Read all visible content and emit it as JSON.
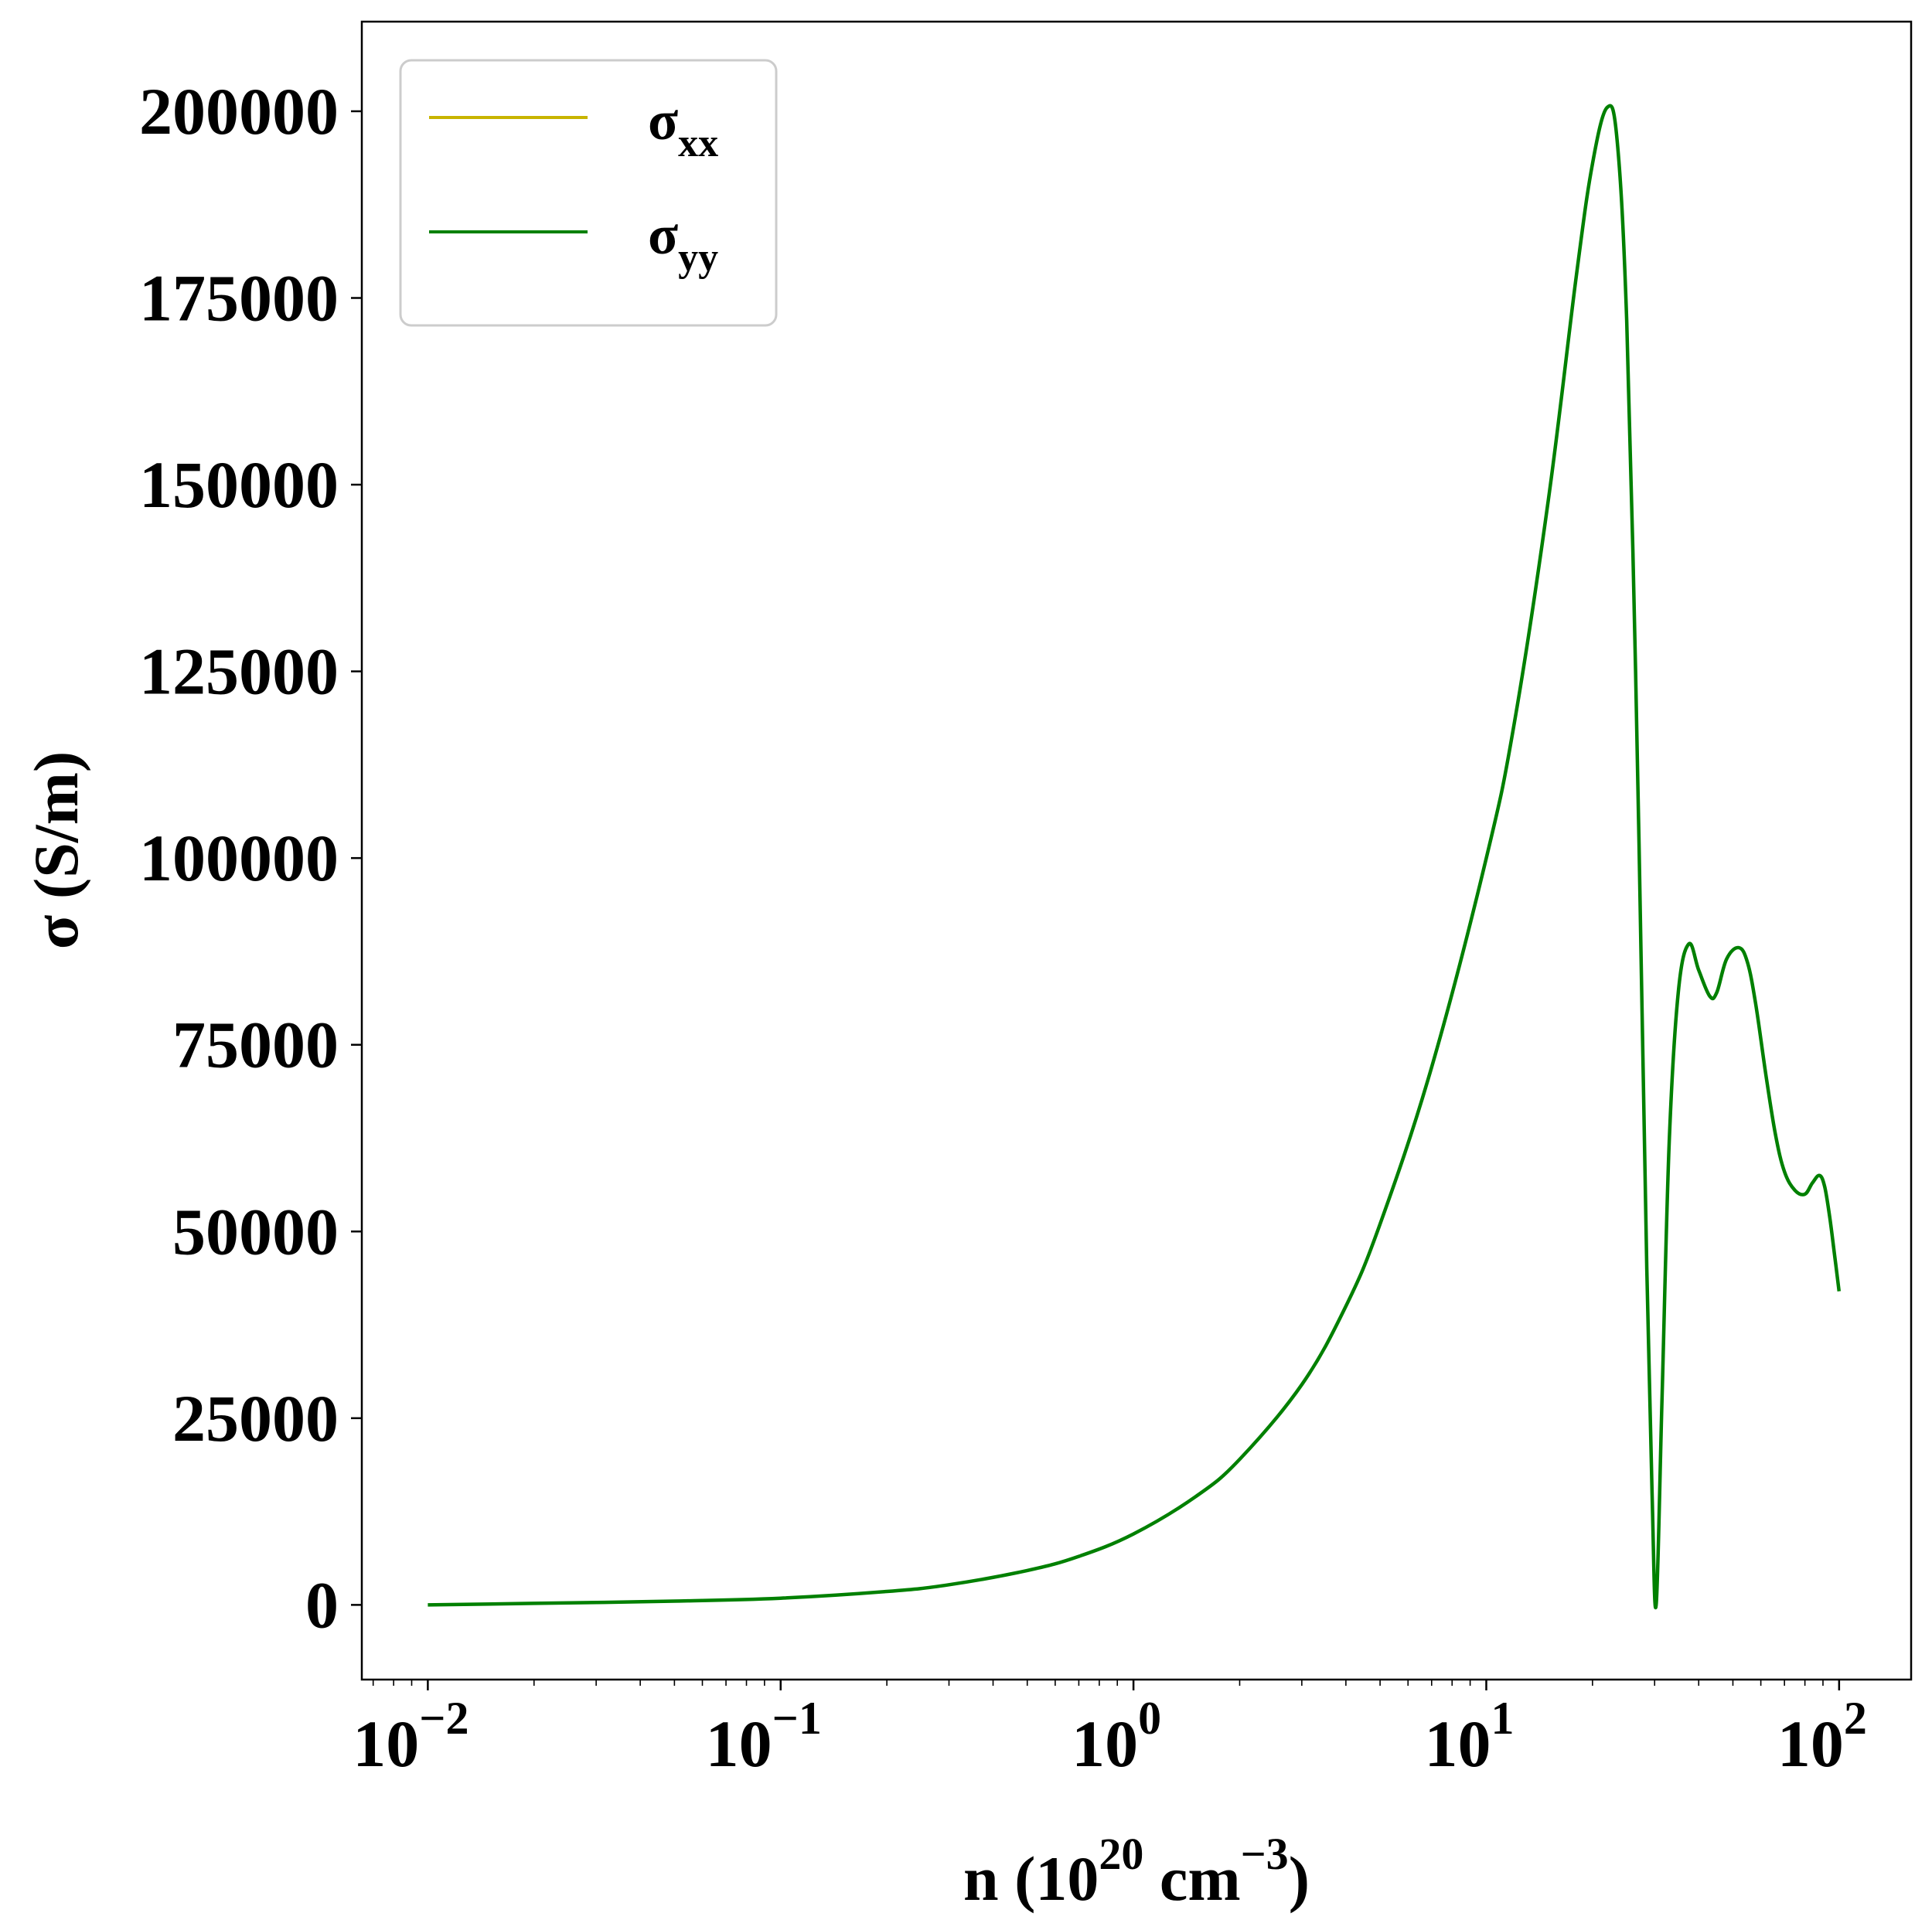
{
  "chart_data": {
    "type": "line",
    "xscale": "log",
    "xlim": [
      0.0065,
      160
    ],
    "ylim": [
      -10000,
      212000
    ],
    "xlabel": {
      "base": "n (10",
      "exp1": "20",
      "mid": " cm",
      "exp2": "−3",
      "end": ")"
    },
    "ylabel": "σ (S/m)",
    "x_ticks": [
      {
        "value": 0.01,
        "base": "10",
        "exp": "−2"
      },
      {
        "value": 0.1,
        "base": "10",
        "exp": "−1"
      },
      {
        "value": 1,
        "base": "10",
        "exp": "0"
      },
      {
        "value": 10,
        "base": "10",
        "exp": "1"
      },
      {
        "value": 100,
        "base": "10",
        "exp": "2"
      }
    ],
    "y_ticks": [
      {
        "value": 0,
        "label": "0"
      },
      {
        "value": 25000,
        "label": "25000"
      },
      {
        "value": 50000,
        "label": "50000"
      },
      {
        "value": 75000,
        "label": "75000"
      },
      {
        "value": 100000,
        "label": "100000"
      },
      {
        "value": 125000,
        "label": "125000"
      },
      {
        "value": 150000,
        "label": "150000"
      },
      {
        "value": 175000,
        "label": "175000"
      },
      {
        "value": 200000,
        "label": "200000"
      }
    ],
    "grid": false,
    "legend": {
      "position": "top-left",
      "entries": [
        {
          "base": "σ",
          "sub": "xx",
          "color": "#c8b400"
        },
        {
          "base": "σ",
          "sub": "yy",
          "color": "#008000"
        }
      ]
    },
    "series": [
      {
        "name": "σyy",
        "color": "#008000",
        "x": [
          0.01,
          0.02,
          0.05,
          0.1,
          0.2,
          0.3,
          0.5,
          0.7,
          1.0,
          1.5,
          2.0,
          3.0,
          4.0,
          5.0,
          7.0,
          10.0,
          12.0,
          15.0,
          18.0,
          20.0,
          22.0,
          23.5,
          25.0,
          26.5,
          27.5,
          28.5,
          29.5,
          30.3,
          31.5,
          33.0,
          35.0,
          37.5,
          40.0,
          43.0,
          45.0,
          48.0,
          52.0,
          55.0,
          58.0,
          62.0,
          66.0,
          70.0,
          75.0,
          80.0,
          84.0,
          88.0,
          91.0,
          94.0,
          97.0,
          100.0
        ],
        "y": [
          0,
          200,
          500,
          900,
          1800,
          2700,
          4600,
          6500,
          9500,
          14500,
          19500,
          29500,
          40000,
          51000,
          72000,
          100000,
          118000,
          148000,
          178000,
          193000,
          200500,
          196000,
          172000,
          125000,
          85000,
          45000,
          15000,
          0,
          28000,
          62000,
          82000,
          88500,
          85000,
          81500,
          82000,
          86500,
          88000,
          86000,
          80500,
          71000,
          63000,
          58000,
          55500,
          55000,
          56500,
          57500,
          56000,
          52000,
          47000,
          42000
        ]
      }
    ]
  }
}
